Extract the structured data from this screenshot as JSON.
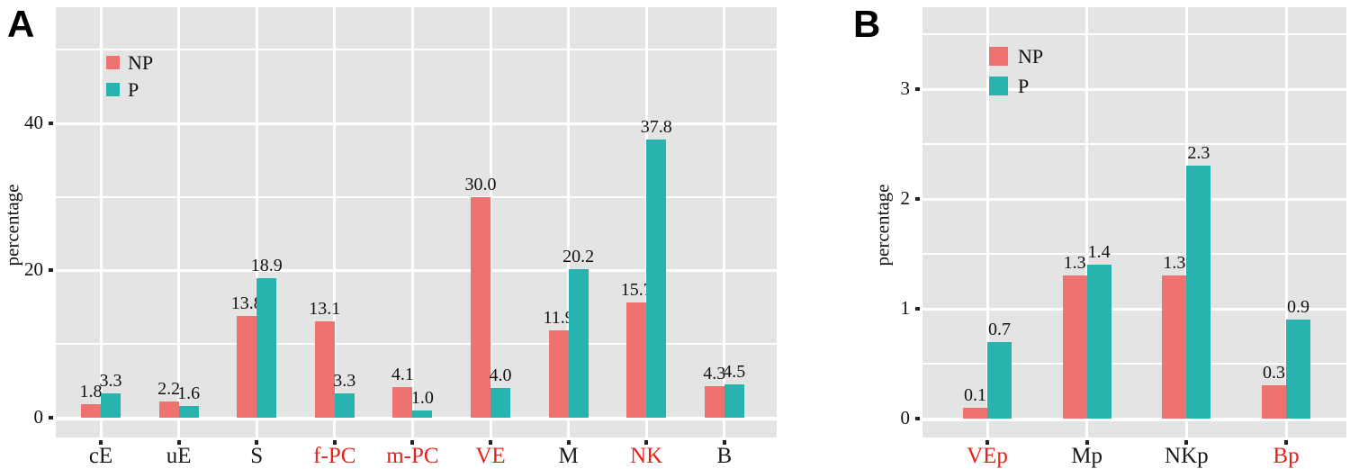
{
  "colors": {
    "np": "#ee7370",
    "p": "#27b3ae",
    "red_label": "#e8221b",
    "text": "#1a1a1a",
    "panel_bg": "#e4e4e4",
    "grid": "#ffffff",
    "tick": "#222222"
  },
  "legend": {
    "np_label": "NP",
    "p_label": "P"
  },
  "chart_data": [
    {
      "panel_label": "A",
      "type": "bar",
      "title": "",
      "xlabel": "",
      "ylabel": "percentage",
      "grid": true,
      "legend_position": "inside-top-left",
      "legend_entries": [
        "NP",
        "P"
      ],
      "categories": [
        "cE",
        "uE",
        "S",
        "f-PC",
        "m-PC",
        "VE",
        "M",
        "NK",
        "B"
      ],
      "category_label_colors": [
        "black",
        "black",
        "black",
        "red",
        "red",
        "red",
        "black",
        "red",
        "black"
      ],
      "series": [
        {
          "name": "NP",
          "values": [
            1.8,
            2.2,
            13.8,
            13.1,
            4.1,
            30.0,
            11.9,
            15.7,
            4.3
          ]
        },
        {
          "name": "P",
          "values": [
            3.3,
            1.6,
            18.9,
            3.3,
            1.0,
            4.0,
            20.2,
            37.8,
            4.5
          ]
        }
      ],
      "value_labels_shown": true,
      "yticks": [
        0,
        20,
        40
      ],
      "yticks_minor": [
        10,
        30,
        50
      ],
      "ylim": [
        0,
        55.8
      ]
    },
    {
      "panel_label": "B",
      "type": "bar",
      "title": "",
      "xlabel": "",
      "ylabel": "percentage",
      "grid": true,
      "legend_position": "inside-top-left",
      "legend_entries": [
        "NP",
        "P"
      ],
      "categories": [
        "VEp",
        "Mp",
        "NKp",
        "Bp"
      ],
      "category_label_colors": [
        "red",
        "black",
        "black",
        "red"
      ],
      "series": [
        {
          "name": "NP",
          "values": [
            0.1,
            1.3,
            1.3,
            0.3
          ]
        },
        {
          "name": "P",
          "values": [
            0.7,
            1.4,
            2.3,
            0.9
          ]
        }
      ],
      "value_labels_shown": true,
      "yticks": [
        0,
        1,
        2,
        3
      ],
      "yticks_minor": [
        0.5,
        1.5,
        2.5,
        3.5
      ],
      "ylim": [
        0,
        3.74
      ]
    }
  ]
}
